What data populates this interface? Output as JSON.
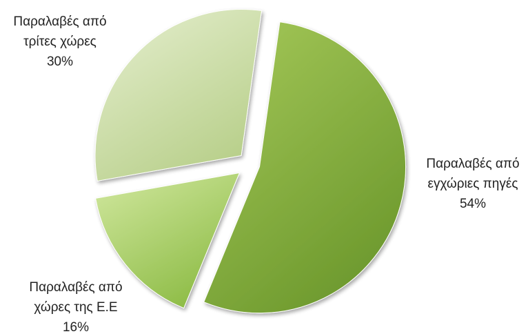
{
  "chart_data": {
    "type": "pie",
    "title": "",
    "legend": "none",
    "categories": [
      "Παραλαβές από εγχώριες πηγές",
      "Παραλαβές από χώρες της Ε.Ε",
      "Παραλαβές από τρίτες χώρες"
    ],
    "values": [
      54,
      16,
      30
    ],
    "unit": "%",
    "exploded": true,
    "labels": [
      {
        "lines": [
          "Παραλαβές από",
          "εγχώριες πηγές"
        ],
        "value_text": "54%"
      },
      {
        "lines": [
          "Παραλαβές από",
          "χώρες της Ε.Ε"
        ],
        "value_text": "16%"
      },
      {
        "lines": [
          "Παραλαβές από",
          "τρίτες χώρες"
        ],
        "value_text": "30%"
      }
    ],
    "colors": {
      "slice_1": {
        "light": "#a6c95a",
        "dark": "#6e9a2e"
      },
      "slice_2": {
        "light": "#d2e8a0",
        "dark": "#8fbd48"
      },
      "slice_3": {
        "light": "#e6efd0",
        "dark": "#b9d08c"
      }
    }
  }
}
